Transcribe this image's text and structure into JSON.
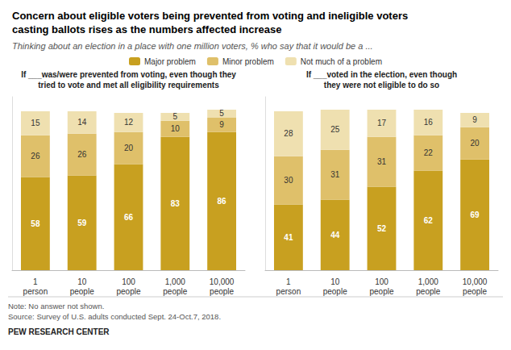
{
  "title": "Concern about eligible voters being prevented from voting and ineligible voters\ncasting ballots rises as the numbers affected increase",
  "subtitle": "Thinking about an election in a place with one million voters, % who say that it would be a ...",
  "annotations": [
    "Note: No answer not shown.\nSource: Survey of U.S. adults conducted Sept. 24-Oct.7, 2018.",
    "PEW RESEARCH CENTER"
  ],
  "chart_data": [
    {
      "type": "bar",
      "title": "If ___was/were prevented from voting, even though they\ntried to vote and met all eligibility requirements",
      "categories": [
        "1\nperson",
        "10\npeople",
        "100\npeople",
        "1,000\npeople",
        "10,000\npeople"
      ],
      "series": [
        {
          "name": "Major problem",
          "color": "#C8A020",
          "values": [
            58,
            59,
            66,
            83,
            86
          ]
        },
        {
          "name": "Minor problem",
          "color": "#DFC06A",
          "values": [
            26,
            26,
            20,
            10,
            9
          ]
        },
        {
          "name": "Not much of a problem",
          "color": "#EFE0B0",
          "values": [
            15,
            14,
            12,
            5,
            5
          ]
        }
      ],
      "ylim": [
        0,
        108
      ],
      "stacked": true,
      "data_labels": true,
      "grid": false,
      "legend": "top",
      "tick_labels": "x"
    },
    {
      "type": "bar",
      "title": "If ___voted in the election, even though\nthey were not eligible to do so",
      "categories": [
        "1\nperson",
        "10\npeople",
        "100\npeople",
        "1,000\npeople",
        "10,000\npeople"
      ],
      "series": [
        {
          "name": "Major problem",
          "color": "#C8A020",
          "values": [
            41,
            44,
            52,
            62,
            69
          ]
        },
        {
          "name": "Minor problem",
          "color": "#DFC06A",
          "values": [
            30,
            31,
            31,
            22,
            20
          ]
        },
        {
          "name": "Not much of a problem",
          "color": "#EFE0B0",
          "values": [
            28,
            25,
            17,
            16,
            9
          ]
        }
      ],
      "ylim": [
        0,
        108
      ],
      "stacked": true,
      "data_labels": true,
      "grid": false,
      "legend": "top",
      "tick_labels": "x"
    }
  ]
}
